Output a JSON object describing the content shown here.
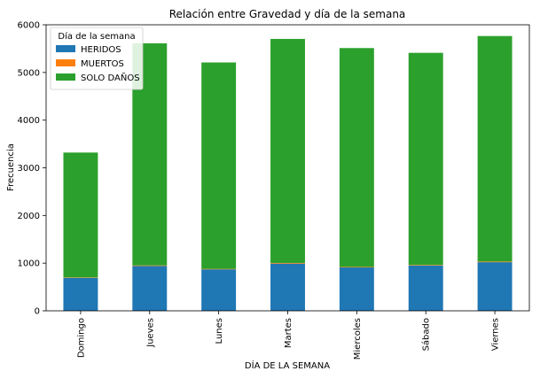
{
  "chart_data": {
    "type": "bar",
    "stacked": true,
    "title": "Relación entre Gravedad y día de la semana",
    "xlabel": "DÍA DE LA SEMANA",
    "ylabel": "Frecuencia",
    "ylim": [
      0,
      6000
    ],
    "yticks": [
      0,
      1000,
      2000,
      3000,
      4000,
      5000,
      6000
    ],
    "grid": false,
    "legend": {
      "title": "Día de la semana",
      "placement": "top-left"
    },
    "categories": [
      "Domingo",
      "Jueves",
      "Lunes",
      "Martes",
      "Miercoles",
      "Sábado",
      "Viernes"
    ],
    "series": [
      {
        "name": "HERIDOS",
        "color": "#1f77b4",
        "values": [
          690,
          940,
          870,
          990,
          910,
          950,
          1020
        ]
      },
      {
        "name": "MUERTOS",
        "color": "#ff7f0e",
        "values": [
          10,
          12,
          10,
          14,
          12,
          12,
          14
        ]
      },
      {
        "name": "SOLO DAÑOS",
        "color": "#2ca02c",
        "values": [
          2620,
          4660,
          4330,
          4700,
          4590,
          4450,
          4730
        ]
      }
    ]
  }
}
